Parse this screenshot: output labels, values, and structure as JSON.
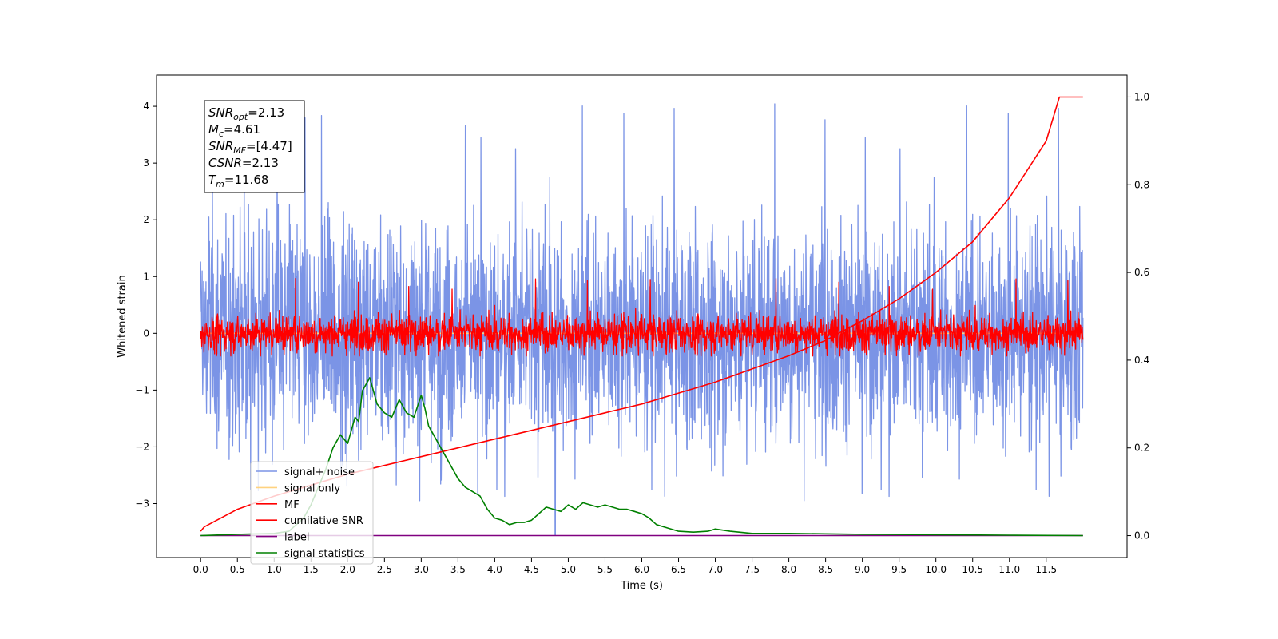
{
  "chart_data": {
    "type": "line",
    "xlabel": "Time (s)",
    "ylabel": "Whitened strain",
    "ylabel_right": "",
    "xlim": [
      -0.6,
      12.6
    ],
    "ylim": [
      -3.95,
      4.55
    ],
    "ylim_right": [
      -0.05,
      1.05
    ],
    "x_ticks": [
      "0.0",
      "0.5",
      "1.0",
      "1.5",
      "2.0",
      "2.5",
      "3.0",
      "3.5",
      "4.0",
      "4.5",
      "5.0",
      "5.5",
      "6.0",
      "6.5",
      "7.0",
      "7.5",
      "8.0",
      "8.5",
      "9.0",
      "9.5",
      "10.0",
      "10.5",
      "11.0",
      "11.5"
    ],
    "y_ticks": [
      "4",
      "3",
      "2",
      "1",
      "0",
      "−1",
      "−2",
      "−3"
    ],
    "y_ticks_right": [
      "1.0",
      "0.8",
      "0.6",
      "0.4",
      "0.2",
      "0.0"
    ],
    "annotation": {
      "lines": [
        {
          "sym": "SNR",
          "sub": "opt",
          "val": "=2.13"
        },
        {
          "sym": "M",
          "sub": "c",
          "val": "=4.61"
        },
        {
          "sym": "SNR",
          "sub": "MF",
          "val": "=[4.47]"
        },
        {
          "sym": "CSNR",
          "sub": "",
          "val": "=2.13"
        },
        {
          "sym": "T",
          "sub": "m",
          "val": "=11.68"
        }
      ]
    },
    "legend": {
      "position": "lower-left",
      "entries": [
        {
          "label": "signal+ noise",
          "color": "#7b94e6"
        },
        {
          "label": "signal only",
          "color": "#ffd27f"
        },
        {
          "label": "MF",
          "color": "#ff0000"
        },
        {
          "label": "cumilative SNR",
          "color": "#ff0000"
        },
        {
          "label": "label",
          "color": "#800080"
        },
        {
          "label": "signal statistics",
          "color": "#008000"
        }
      ]
    },
    "series": [
      {
        "name": "signal+ noise",
        "axis": "left",
        "color": "#7b94e6",
        "style": "noise",
        "x_range": [
          0,
          12
        ],
        "center": 0.0,
        "spread": 0.95,
        "min": -2.95,
        "max": 4.18,
        "spike_at": 4.82,
        "spike_low": -3.55
      },
      {
        "name": "signal only",
        "axis": "left",
        "color": "#ffd27f",
        "x": [
          0,
          12
        ],
        "y": [
          0,
          0
        ]
      },
      {
        "name": "MF",
        "axis": "left",
        "color": "#ff0000",
        "style": "noise",
        "x_range": [
          0,
          12
        ],
        "center": 0.0,
        "spread": 0.17,
        "min": -0.4,
        "max": 1.0
      },
      {
        "name": "cumilative SNR",
        "axis": "right",
        "color": "#ff0000",
        "x": [
          0,
          0.05,
          0.5,
          1,
          1.5,
          2,
          2.5,
          3,
          3.5,
          4,
          4.5,
          5,
          5.5,
          6,
          6.5,
          7,
          7.5,
          8,
          8.5,
          9,
          9.5,
          10,
          10.5,
          11,
          11.5,
          11.68,
          12
        ],
        "y": [
          0.01,
          0.02,
          0.06,
          0.09,
          0.115,
          0.14,
          0.16,
          0.18,
          0.2,
          0.22,
          0.24,
          0.26,
          0.28,
          0.3,
          0.325,
          0.35,
          0.38,
          0.41,
          0.445,
          0.49,
          0.54,
          0.6,
          0.67,
          0.77,
          0.9,
          1.0,
          1.0
        ]
      },
      {
        "name": "label",
        "axis": "right",
        "color": "#800080",
        "x": [
          0,
          12
        ],
        "y": [
          0.0,
          0.0
        ]
      },
      {
        "name": "signal statistics",
        "axis": "right",
        "color": "#008000",
        "x": [
          0,
          0.5,
          1,
          1.2,
          1.4,
          1.5,
          1.6,
          1.7,
          1.8,
          1.9,
          2.0,
          2.1,
          2.15,
          2.2,
          2.3,
          2.4,
          2.5,
          2.6,
          2.7,
          2.8,
          2.9,
          3.0,
          3.05,
          3.1,
          3.2,
          3.3,
          3.4,
          3.5,
          3.6,
          3.7,
          3.8,
          3.9,
          4.0,
          4.1,
          4.2,
          4.3,
          4.4,
          4.5,
          4.6,
          4.7,
          4.8,
          4.9,
          5.0,
          5.1,
          5.2,
          5.3,
          5.4,
          5.5,
          5.6,
          5.7,
          5.8,
          5.9,
          6.0,
          6.1,
          6.2,
          6.3,
          6.5,
          6.7,
          6.9,
          7.0,
          7.2,
          7.5,
          8.0,
          8.5,
          9.0,
          10.0,
          11.0,
          12.0
        ],
        "y": [
          0.0,
          0.003,
          0.005,
          0.01,
          0.04,
          0.07,
          0.11,
          0.15,
          0.2,
          0.23,
          0.21,
          0.27,
          0.26,
          0.33,
          0.36,
          0.3,
          0.28,
          0.27,
          0.31,
          0.28,
          0.27,
          0.32,
          0.29,
          0.25,
          0.22,
          0.19,
          0.16,
          0.13,
          0.11,
          0.1,
          0.09,
          0.06,
          0.04,
          0.035,
          0.025,
          0.03,
          0.03,
          0.035,
          0.05,
          0.065,
          0.06,
          0.055,
          0.07,
          0.06,
          0.075,
          0.07,
          0.065,
          0.07,
          0.065,
          0.06,
          0.06,
          0.055,
          0.05,
          0.04,
          0.025,
          0.02,
          0.01,
          0.008,
          0.01,
          0.015,
          0.01,
          0.005,
          0.005,
          0.004,
          0.003,
          0.002,
          0.001,
          0.0
        ]
      }
    ]
  }
}
